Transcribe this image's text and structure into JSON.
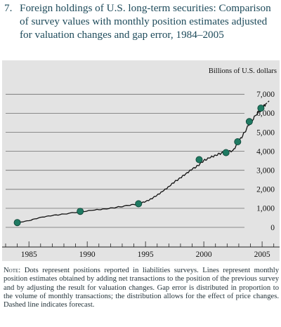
{
  "figure": {
    "number": "7.",
    "title": "Foreign holdings of U.S. long-term securities: Comparison of survey values with monthly position estimates adjusted for valuation changes and gap error, 1984–2005"
  },
  "chart_data": {
    "type": "line",
    "unit_label": "Billions of U.S. dollars",
    "x_ticks": [
      "1985",
      "1990",
      "1995",
      "2000",
      "2005"
    ],
    "y_ticks": [
      "0",
      "1,000",
      "2,000",
      "3,000",
      "4,000",
      "5,000",
      "6,000",
      "7,000"
    ],
    "xlim": [
      1983.0,
      2006.5
    ],
    "ylim": [
      -500,
      7200
    ],
    "series": [
      {
        "kind": "monthly position estimates",
        "x": [
          1984.0,
          1985.0,
          1986.0,
          1987.0,
          1988.0,
          1989.4,
          1990.5,
          1991.5,
          1992.5,
          1993.5,
          1994.4,
          1995.0,
          1995.5,
          1996.0,
          1996.5,
          1997.0,
          1997.5,
          1998.0,
          1998.5,
          1999.0,
          1999.5,
          2000.0,
          2000.5,
          2001.0,
          2001.5,
          2002.0,
          2002.5,
          2003.0,
          2003.5,
          2004.0,
          2004.5,
          2005.0,
          2005.3
        ],
        "y": [
          250,
          350,
          530,
          620,
          700,
          820,
          900,
          970,
          1050,
          1150,
          1240,
          1350,
          1500,
          1700,
          1900,
          2150,
          2400,
          2600,
          2850,
          3050,
          3250,
          3520,
          3650,
          3800,
          3900,
          3950,
          4050,
          4500,
          5000,
          5550,
          5900,
          6260,
          6480
        ]
      },
      {
        "kind": "forecast",
        "x": [
          2005.3,
          2005.6
        ],
        "y": [
          6480,
          6650
        ]
      }
    ],
    "survey_points": {
      "x": [
        1984.0,
        1989.4,
        1994.4,
        1999.6,
        2001.9,
        2002.9,
        2003.9,
        2004.9
      ],
      "y": [
        250,
        840,
        1240,
        3560,
        3930,
        4500,
        5560,
        6270
      ]
    },
    "colors": {
      "line": "#111111",
      "dot": "#1f7a62",
      "dot_edge": "#0d3f33",
      "grid": "#6e6e6e",
      "panel": "#e3e3e3"
    }
  },
  "note": {
    "label": "Note:",
    "text": "Dots represent positions reported in liabilities surveys. Lines represent monthly position estimates obtained by adding net transactions to the position of the previous survey and by adjusting the result for valuation changes. Gap error is distributed in proportion to the volume of monthly transactions; the distribution allows for the effect of price changes. Dashed line indicates forecast."
  }
}
